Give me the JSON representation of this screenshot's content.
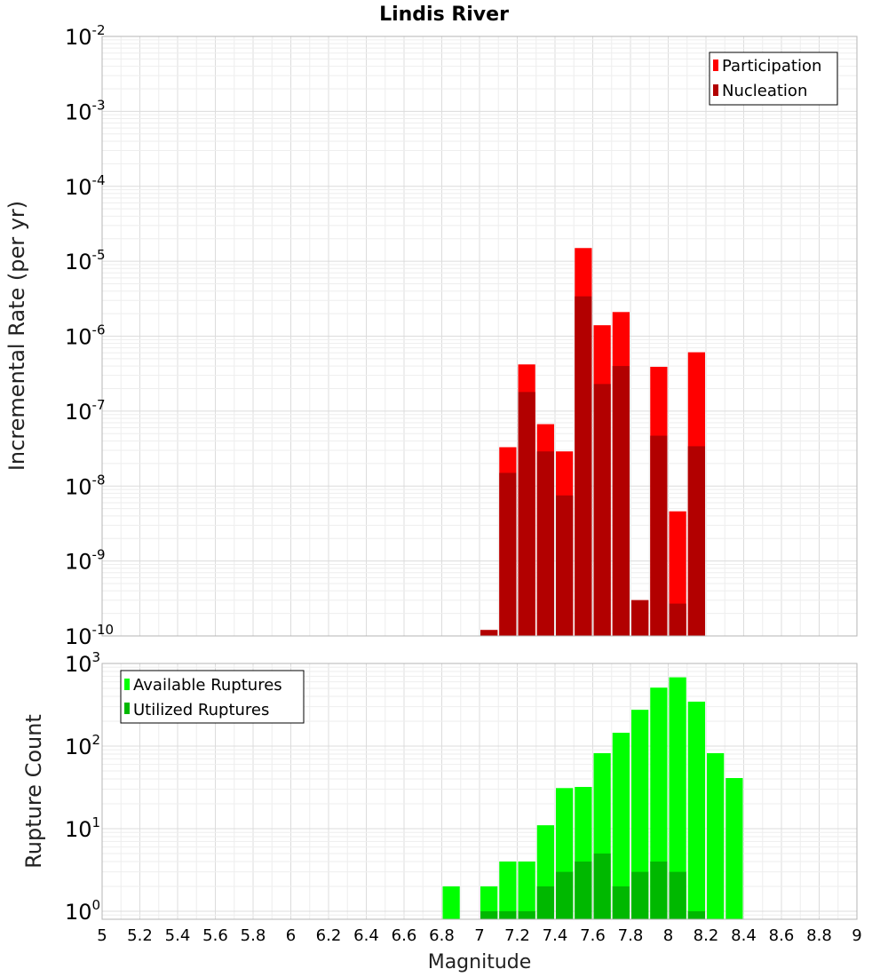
{
  "title": "Lindis River",
  "colors": {
    "participation": "#ff0000",
    "nucleation": "#b20000",
    "available": "#00ff00",
    "utilized": "#00b800"
  },
  "chart_data": [
    {
      "type": "bar",
      "ylabel": "Incremental Rate (per yr)",
      "yscale": "log",
      "ylim": [
        1e-10,
        0.01
      ],
      "xlim": [
        5,
        9
      ],
      "legend_position": "top-right",
      "legend": [
        "Participation",
        "Nucleation"
      ],
      "x": [
        7.05,
        7.15,
        7.25,
        7.35,
        7.45,
        7.55,
        7.65,
        7.75,
        7.85,
        7.95,
        8.05,
        8.15
      ],
      "series": [
        {
          "name": "Participation",
          "values": [
            1.2e-10,
            3.3e-08,
            4.2e-07,
            6.7e-08,
            2.9e-08,
            1.5e-05,
            1.4e-06,
            2.1e-06,
            3e-10,
            3.9e-07,
            4.6e-09,
            6.1e-07
          ]
        },
        {
          "name": "Nucleation",
          "values": [
            1.2e-10,
            1.5e-08,
            1.8e-07,
            2.9e-08,
            7.5e-09,
            3.4e-06,
            2.3e-07,
            4e-07,
            3e-10,
            4.7e-08,
            2.7e-10,
            3.4e-08
          ]
        }
      ]
    },
    {
      "type": "bar",
      "ylabel": "Rupture Count",
      "xlabel": "Magnitude",
      "yscale": "log",
      "ylim": [
        0.8,
        1000
      ],
      "xlim": [
        5,
        9
      ],
      "legend_position": "top-left",
      "legend": [
        "Available Ruptures",
        "Utilized Ruptures"
      ],
      "x": [
        6.85,
        7.05,
        7.15,
        7.25,
        7.35,
        7.45,
        7.55,
        7.65,
        7.75,
        7.85,
        7.95,
        8.05,
        8.15,
        8.25,
        8.35
      ],
      "series": [
        {
          "name": "Available Ruptures",
          "values": [
            2,
            2,
            4,
            4,
            11,
            31,
            32,
            82,
            145,
            275,
            510,
            680,
            345,
            82,
            41
          ]
        },
        {
          "name": "Utilized Ruptures",
          "values": [
            0,
            1,
            1,
            1,
            2,
            3,
            4,
            5,
            2,
            3,
            4,
            3,
            1,
            0,
            0
          ]
        }
      ]
    }
  ],
  "x_ticks": [
    "5",
    "5.2",
    "5.4",
    "5.6",
    "5.8",
    "6",
    "6.2",
    "6.4",
    "6.6",
    "6.8",
    "7",
    "7.2",
    "7.4",
    "7.6",
    "7.8",
    "8",
    "8.2",
    "8.4",
    "8.6",
    "8.8",
    "9"
  ],
  "top_y_ticks": [
    {
      "base": "10",
      "exp": "-10"
    },
    {
      "base": "10",
      "exp": "-9"
    },
    {
      "base": "10",
      "exp": "-8"
    },
    {
      "base": "10",
      "exp": "-7"
    },
    {
      "base": "10",
      "exp": "-6"
    },
    {
      "base": "10",
      "exp": "-5"
    },
    {
      "base": "10",
      "exp": "-4"
    },
    {
      "base": "10",
      "exp": "-3"
    },
    {
      "base": "10",
      "exp": "-2"
    }
  ],
  "bottom_y_ticks": [
    {
      "base": "10",
      "exp": "0"
    },
    {
      "base": "10",
      "exp": "1"
    },
    {
      "base": "10",
      "exp": "2"
    },
    {
      "base": "10",
      "exp": "3"
    }
  ]
}
